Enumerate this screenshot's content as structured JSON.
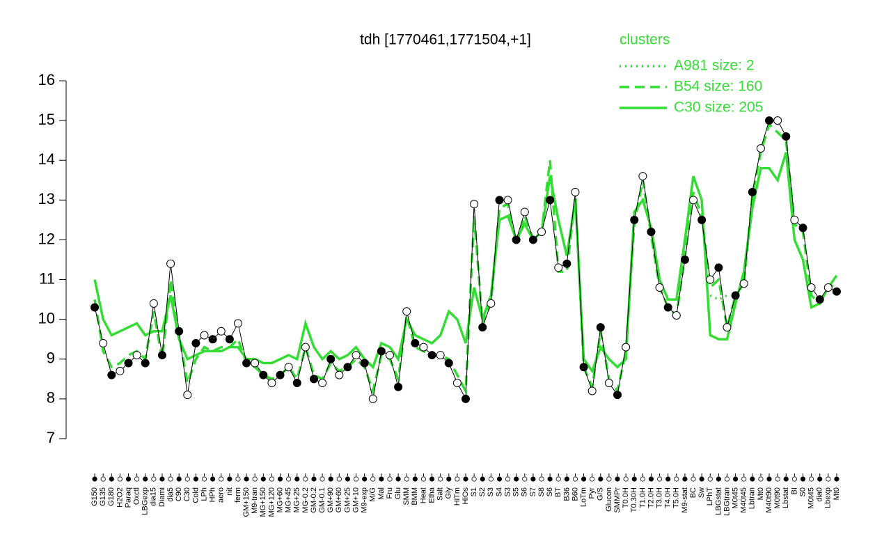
{
  "chart_data": {
    "type": "line",
    "title": "tdh [1770461,1771504,+1]",
    "legend_title": "clusters",
    "legend_position": "top-right",
    "point_color": "#000000",
    "ylim": [
      7,
      16
    ],
    "yticks": [
      7,
      8,
      9,
      10,
      11,
      12,
      13,
      14,
      15,
      16
    ],
    "categories": [
      "G150",
      "G135",
      "G180",
      "H2O2",
      "Paraq",
      "Oxctl",
      "LBGexp",
      "dia15",
      "Diami",
      "dia5",
      "C90",
      "C30",
      "Cold",
      "LPh",
      "HPh",
      "aero",
      "nit",
      "ferm",
      "GM+150",
      "M9-tran",
      "MG+150",
      "MG+120",
      "MG+60",
      "MG+45",
      "MG+25",
      "MG-0.2",
      "GM-0.2",
      "GM-0.1",
      "GM+90",
      "GM+60",
      "GM+25",
      "GM+10",
      "M9-exp",
      "M/G",
      "Mal",
      "Fru",
      "Glu",
      "SMM",
      "BMM",
      "Heat",
      "Etha",
      "Salt",
      "Gly",
      "HiTm",
      "HiOs",
      "S1",
      "S2",
      "S3",
      "S4",
      "S3",
      "S5",
      "S6",
      "S7",
      "S8",
      "S6",
      "BT",
      "B36",
      "B60",
      "LoTm",
      "Pyr",
      "G/S",
      "Glucon",
      "SMMPr",
      "T0.0H",
      "T0.30H",
      "T1.0H",
      "T2.0H",
      "T3.0H",
      "T4.0H",
      "T5.0H",
      "M9-stat",
      "BC",
      "Sw",
      "LPhT",
      "LBGstat",
      "LBGtran",
      "M0t45",
      "M40t45",
      "Lbtran",
      "Mt0",
      "M40t90",
      "M0t90",
      "Lbstat",
      "BI",
      "S0",
      "M0t45",
      "dia0",
      "Lbexp",
      "Mt0"
    ],
    "values": [
      10.3,
      9.4,
      8.6,
      8.7,
      8.9,
      9.1,
      8.9,
      10.4,
      9.1,
      11.4,
      9.7,
      8.1,
      9.4,
      9.6,
      9.5,
      9.7,
      9.5,
      9.9,
      8.9,
      8.9,
      8.6,
      8.4,
      8.6,
      8.8,
      8.4,
      9.3,
      8.5,
      8.4,
      9.0,
      8.6,
      8.8,
      9.1,
      8.9,
      8.0,
      9.2,
      9.1,
      8.3,
      10.2,
      9.4,
      9.3,
      9.1,
      9.1,
      8.9,
      8.4,
      8.0,
      12.9,
      9.8,
      10.4,
      13.0,
      13.0,
      12.0,
      12.7,
      12.0,
      12.2,
      13.0,
      11.3,
      11.4,
      13.2,
      8.8,
      8.2,
      9.8,
      8.4,
      8.1,
      9.3,
      12.5,
      13.6,
      12.2,
      10.8,
      10.3,
      10.1,
      11.5,
      13.0,
      12.5,
      11.0,
      11.3,
      9.8,
      10.6,
      10.9,
      13.2,
      14.3,
      15.0,
      15.0,
      14.6,
      12.5,
      12.3,
      10.8,
      10.5,
      10.8,
      10.7
    ],
    "series": [
      {
        "name": "A981 size: 2",
        "color": "#33dd33",
        "dash": "dotted",
        "values": [
          null,
          null,
          null,
          null,
          null,
          null,
          null,
          null,
          null,
          null,
          null,
          null,
          null,
          null,
          null,
          null,
          null,
          null,
          null,
          null,
          null,
          null,
          null,
          null,
          null,
          null,
          null,
          null,
          null,
          null,
          null,
          null,
          null,
          null,
          null,
          null,
          null,
          null,
          null,
          null,
          null,
          null,
          null,
          null,
          null,
          null,
          null,
          null,
          null,
          null,
          null,
          null,
          null,
          null,
          null,
          null,
          null,
          null,
          null,
          null,
          null,
          null,
          null,
          null,
          null,
          null,
          null,
          null,
          null,
          null,
          null,
          null,
          null,
          10.6,
          10.5,
          10.6,
          null,
          null,
          null,
          null,
          null,
          null,
          null,
          null,
          null,
          null,
          null,
          null,
          null
        ]
      },
      {
        "name": "B54 size: 160",
        "color": "#33dd33",
        "dash": "dashed",
        "values": [
          10.5,
          9.2,
          8.8,
          8.9,
          9.1,
          9.2,
          9.0,
          10.2,
          9.0,
          11.0,
          9.6,
          8.4,
          9.0,
          9.3,
          9.2,
          9.3,
          9.3,
          9.5,
          8.9,
          8.8,
          8.6,
          8.5,
          8.6,
          8.8,
          8.5,
          9.3,
          8.6,
          8.5,
          8.9,
          8.7,
          8.8,
          9.0,
          8.8,
          8.2,
          9.1,
          9.0,
          8.5,
          10.1,
          9.3,
          9.2,
          9.1,
          9.1,
          9.0,
          8.6,
          8.2,
          12.6,
          9.9,
          10.4,
          12.8,
          12.9,
          11.9,
          12.6,
          12.0,
          12.2,
          14.0,
          11.2,
          11.2,
          13.1,
          8.8,
          8.3,
          9.7,
          8.5,
          8.2,
          9.2,
          12.4,
          13.5,
          12.1,
          10.8,
          10.3,
          10.1,
          11.6,
          13.2,
          12.6,
          10.8,
          11.0,
          9.8,
          10.6,
          10.9,
          13.1,
          14.2,
          14.9,
          14.7,
          14.5,
          12.4,
          12.2,
          10.6,
          10.4,
          10.8,
          10.9
        ]
      },
      {
        "name": "C30 size: 205",
        "color": "#33dd33",
        "dash": "solid",
        "values": [
          11.0,
          10.0,
          9.6,
          9.7,
          9.8,
          9.9,
          9.6,
          9.7,
          9.7,
          10.6,
          9.5,
          9.0,
          9.1,
          9.2,
          9.2,
          9.2,
          9.3,
          9.3,
          9.0,
          9.0,
          8.9,
          8.9,
          9.0,
          9.1,
          9.0,
          9.9,
          9.3,
          9.0,
          9.2,
          9.0,
          9.1,
          9.3,
          9.0,
          8.8,
          9.4,
          9.3,
          9.0,
          10.0,
          9.6,
          9.5,
          9.4,
          9.6,
          10.2,
          10.0,
          9.4,
          10.8,
          10.0,
          10.6,
          12.5,
          12.6,
          12.0,
          12.4,
          12.0,
          12.2,
          13.6,
          12.5,
          11.6,
          13.0,
          9.0,
          8.7,
          9.3,
          9.0,
          8.8,
          9.0,
          12.7,
          13.0,
          12.3,
          11.0,
          10.5,
          10.5,
          12.0,
          13.6,
          13.0,
          9.6,
          9.5,
          9.5,
          10.4,
          11.2,
          12.8,
          13.8,
          13.8,
          13.5,
          14.2,
          12.0,
          11.5,
          10.3,
          10.4,
          10.8,
          11.1
        ]
      }
    ]
  }
}
